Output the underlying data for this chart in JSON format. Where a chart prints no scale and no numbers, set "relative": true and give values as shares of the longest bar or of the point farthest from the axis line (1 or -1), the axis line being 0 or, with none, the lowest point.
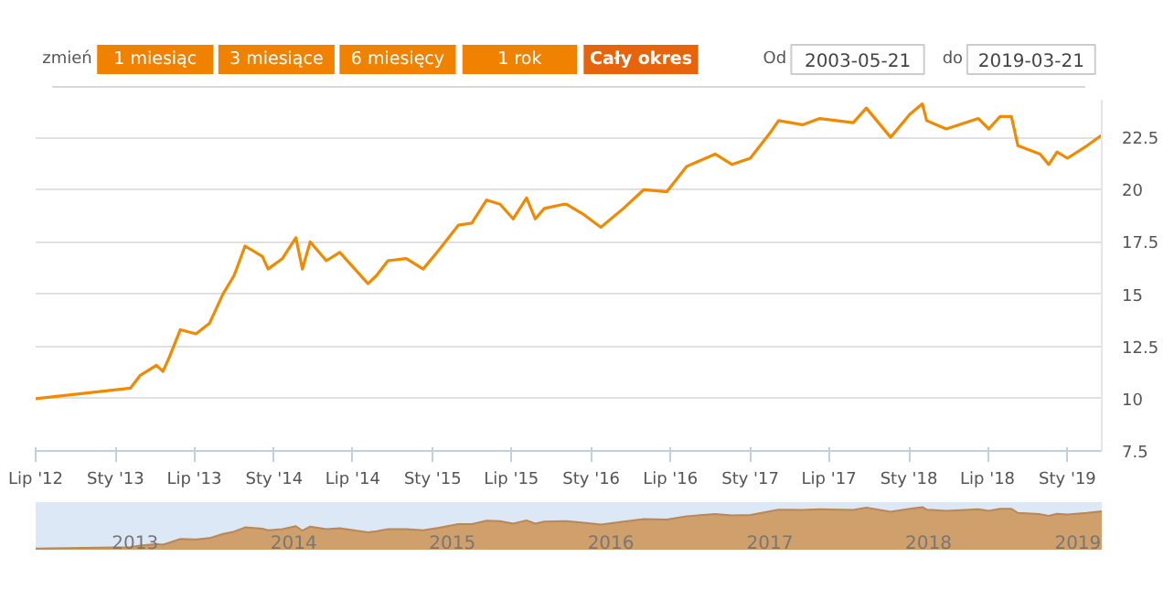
{
  "chart_data": [
    {
      "type": "line",
      "annotations": [
        "zmień",
        "1 miesiąc",
        "3 miesiące",
        "6 miesięcy",
        "1 rok",
        "Cały okres",
        "Od",
        "2003-05-21",
        "do",
        "2019-03-21"
      ],
      "x": [
        "2012-07-01",
        "2013-02-04",
        "2013-02-26",
        "2013-04-05",
        "2013-04-20",
        "2013-05-05",
        "2013-05-30",
        "2013-07-05",
        "2013-08-05",
        "2013-09-05",
        "2013-10-01",
        "2013-10-26",
        "2013-12-05",
        "2013-12-18",
        "2014-01-20",
        "2014-02-20",
        "2014-03-07",
        "2014-03-25",
        "2014-05-01",
        "2014-06-01",
        "2014-08-05",
        "2014-08-25",
        "2014-09-20",
        "2014-11-01",
        "2014-12-10",
        "2015-01-15",
        "2015-03-01",
        "2015-04-01",
        "2015-05-05",
        "2015-06-05",
        "2015-07-05",
        "2015-08-05",
        "2015-08-25",
        "2015-09-15",
        "2015-10-30",
        "2015-11-05",
        "2015-12-15",
        "2016-01-23",
        "2016-03-15",
        "2016-05-01",
        "2016-06-23",
        "2016-08-07",
        "2016-10-12",
        "2016-11-20",
        "2017-01-01",
        "2017-02-15",
        "2017-03-07",
        "2017-05-01",
        "2017-06-10",
        "2017-08-26",
        "2017-09-25",
        "2017-11-20",
        "2018-01-03",
        "2018-02-01",
        "2018-02-11",
        "2018-03-28",
        "2018-06-10",
        "2018-07-04",
        "2018-07-30",
        "2018-08-25",
        "2018-09-09",
        "2018-10-30",
        "2018-11-19",
        "2018-12-08",
        "2019-01-01",
        "2019-02-15",
        "2019-03-21"
      ],
      "series": [
        {
          "color": "#f08a00",
          "values": [
            10.0,
            10.5,
            11.1,
            11.6,
            11.3,
            12.0,
            13.3,
            13.1,
            13.6,
            15.0,
            15.9,
            17.3,
            16.8,
            16.2,
            16.7,
            17.7,
            16.2,
            17.5,
            16.6,
            17.0,
            15.5,
            15.9,
            16.6,
            16.7,
            16.2,
            17.1,
            18.3,
            18.4,
            19.5,
            19.3,
            18.6,
            19.6,
            18.6,
            19.1,
            19.3,
            19.3,
            18.8,
            18.2,
            19.1,
            20.0,
            19.9,
            21.1,
            21.7,
            21.2,
            21.5,
            22.7,
            23.3,
            23.1,
            23.4,
            23.2,
            23.9,
            22.5,
            23.6,
            24.1,
            23.3,
            22.9,
            23.4,
            22.9,
            23.5,
            23.5,
            22.1,
            21.7,
            21.2,
            21.8,
            21.5,
            22.1,
            22.6
          ]
        }
      ],
      "xlim": [
        "2012-07-01",
        "2019-03-21"
      ],
      "xticks": [
        {
          "value": "2012-07-01",
          "label": "Lip '12"
        },
        {
          "value": "2013-01-01",
          "label": "Sty '13"
        },
        {
          "value": "2013-07-01",
          "label": "Lip '13"
        },
        {
          "value": "2014-01-01",
          "label": "Sty '14"
        },
        {
          "value": "2014-07-01",
          "label": "Lip '14"
        },
        {
          "value": "2015-01-01",
          "label": "Sty '15"
        },
        {
          "value": "2015-07-01",
          "label": "Lip '15"
        },
        {
          "value": "2016-01-01",
          "label": "Sty '16"
        },
        {
          "value": "2016-07-01",
          "label": "Lip '16"
        },
        {
          "value": "2017-01-01",
          "label": "Sty '17"
        },
        {
          "value": "2017-07-01",
          "label": "Lip '17"
        },
        {
          "value": "2018-01-01",
          "label": "Sty '18"
        },
        {
          "value": "2018-07-01",
          "label": "Lip '18"
        },
        {
          "value": "2019-01-01",
          "label": "Sty '19"
        }
      ],
      "ylim": [
        7.5,
        24.3
      ],
      "yticks": [
        7.5,
        10,
        12.5,
        15,
        17.5,
        20,
        22.5
      ],
      "grid": "y",
      "marker": "none",
      "line_style": "solid"
    },
    {
      "type": "area",
      "relative": true,
      "x": [
        "2012-07-01",
        "2013-02-04",
        "2013-02-26",
        "2013-04-05",
        "2013-04-20",
        "2013-05-05",
        "2013-05-30",
        "2013-07-05",
        "2013-08-05",
        "2013-09-05",
        "2013-10-01",
        "2013-10-26",
        "2013-12-05",
        "2013-12-18",
        "2014-01-20",
        "2014-02-20",
        "2014-03-07",
        "2014-03-25",
        "2014-05-01",
        "2014-06-01",
        "2014-08-05",
        "2014-08-25",
        "2014-09-20",
        "2014-11-01",
        "2014-12-10",
        "2015-01-15",
        "2015-03-01",
        "2015-04-01",
        "2015-05-05",
        "2015-06-05",
        "2015-07-05",
        "2015-08-05",
        "2015-08-25",
        "2015-09-15",
        "2015-10-30",
        "2015-11-05",
        "2015-12-15",
        "2016-01-23",
        "2016-03-15",
        "2016-05-01",
        "2016-06-23",
        "2016-08-07",
        "2016-10-12",
        "2016-11-20",
        "2017-01-01",
        "2017-02-15",
        "2017-03-07",
        "2017-05-01",
        "2017-06-10",
        "2017-08-26",
        "2017-09-25",
        "2017-11-20",
        "2018-01-03",
        "2018-02-01",
        "2018-02-11",
        "2018-03-28",
        "2018-06-10",
        "2018-07-04",
        "2018-07-30",
        "2018-08-25",
        "2018-09-09",
        "2018-10-30",
        "2018-11-19",
        "2018-12-08",
        "2019-01-01",
        "2019-02-15",
        "2019-03-21"
      ],
      "series": [
        {
          "color": "#cf9f6c",
          "values": [
            0,
            0.03,
            0.07,
            0.11,
            0.09,
            0.14,
            0.23,
            0.22,
            0.25,
            0.35,
            0.41,
            0.51,
            0.48,
            0.44,
            0.47,
            0.54,
            0.43,
            0.53,
            0.47,
            0.49,
            0.39,
            0.42,
            0.47,
            0.47,
            0.44,
            0.5,
            0.59,
            0.59,
            0.67,
            0.66,
            0.6,
            0.68,
            0.6,
            0.65,
            0.66,
            0.66,
            0.62,
            0.58,
            0.65,
            0.71,
            0.7,
            0.78,
            0.83,
            0.8,
            0.81,
            0.9,
            0.94,
            0.93,
            0.95,
            0.93,
            0.99,
            0.89,
            0.96,
            1,
            0.94,
            0.91,
            0.95,
            0.91,
            0.96,
            0.96,
            0.86,
            0.83,
            0.79,
            0.84,
            0.82,
            0.86,
            0.9
          ]
        }
      ],
      "xlim": [
        "2012-07-01",
        "2019-03-21"
      ],
      "xticks": [
        {
          "value": "2013-02-15",
          "label": "2013"
        },
        {
          "value": "2014-02-15",
          "label": "2014"
        },
        {
          "value": "2015-02-15",
          "label": "2015"
        },
        {
          "value": "2016-02-15",
          "label": "2016"
        },
        {
          "value": "2017-02-15",
          "label": "2017"
        },
        {
          "value": "2018-02-15",
          "label": "2018"
        },
        {
          "value": "2019-01-25",
          "label": "2019"
        }
      ]
    }
  ]
}
